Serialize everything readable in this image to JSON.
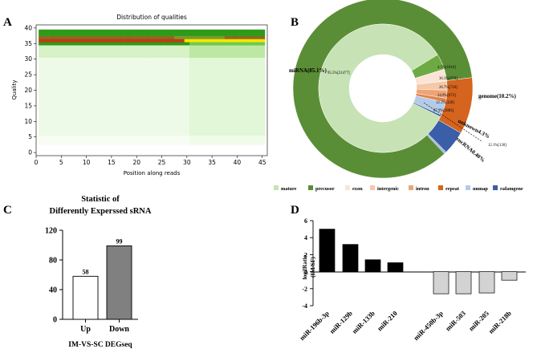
{
  "figure": {
    "panels": {
      "a": {
        "letter": "A"
      },
      "b": {
        "letter": "B"
      },
      "c": {
        "letter": "C"
      },
      "d": {
        "letter": "D"
      }
    }
  },
  "chart_data": [
    {
      "id": "A",
      "type": "heatmap",
      "title": "Distribution of qualities",
      "xlabel": "Position along reads",
      "ylabel": "Quality",
      "xlim": [
        0,
        46
      ],
      "ylim": [
        -1,
        41
      ],
      "xticks": [
        0,
        5,
        10,
        15,
        20,
        25,
        30,
        35,
        40,
        45
      ],
      "yticks": [
        0,
        5,
        10,
        15,
        20,
        25,
        30,
        35,
        40
      ],
      "colors": {
        "high": "#2e9a1a",
        "mid": "#bde8a4",
        "low": "#eefae8",
        "line": "#c43a12",
        "upper": "#f5e600"
      }
    },
    {
      "id": "B",
      "type": "pie",
      "subtype": "nested-donut",
      "outer": [
        {
          "label": "miRNA(85.1%)",
          "value": 85.1,
          "color": "#5a8e36"
        },
        {
          "label": "genome(10.2%)",
          "value": 10.2,
          "color": "#d4641e"
        },
        {
          "label": "unknown4.3%",
          "value": 4.3,
          "color": "#3a5ea8"
        },
        {
          "label": "sncRNA0.40%",
          "value": 0.4,
          "color": "#9fbbe0"
        }
      ],
      "inner": [
        {
          "label": "95.5%[21477]",
          "value": 95.5,
          "color": "#c7e2b4"
        },
        {
          "label": "4.5%[1016]",
          "value": 4.5,
          "color": "#6eaa44"
        },
        {
          "label": "36.3%[979]",
          "value": 3.4,
          "color": "#fbe4d6"
        },
        {
          "label": "26.7%[720]",
          "value": 2.6,
          "color": "#f5c8a6"
        },
        {
          "label": "24.9%[673]",
          "value": 2.3,
          "color": "#eea476"
        },
        {
          "label": "12.1%[328]",
          "value": 1.2,
          "color": "#e0844a"
        },
        {
          "label": "87.9%[2883]",
          "value": 3.8,
          "color": "#b4cbe8"
        },
        {
          "label": "12.1%[130]",
          "value": 0.5,
          "color": "#2b4f94"
        }
      ],
      "legend": [
        {
          "label": "mature",
          "color": "#c7e2b4"
        },
        {
          "label": "precusor",
          "color": "#5a8e36"
        },
        {
          "label": "exon",
          "color": "#fbe4d6"
        },
        {
          "label": "intergenic",
          "color": "#f5c8a6"
        },
        {
          "label": "intron",
          "color": "#eea476"
        },
        {
          "label": "repeat",
          "color": "#d4641e"
        },
        {
          "label": "unmap",
          "color": "#b4cbe8"
        },
        {
          "label": "rafamgene",
          "color": "#3a5ea8"
        }
      ]
    },
    {
      "id": "C",
      "type": "bar",
      "title_line1": "Statistic of",
      "title_line2": "Differently Experssed sRNA",
      "categories": [
        "Up",
        "Down"
      ],
      "values": [
        58,
        99
      ],
      "value_labels": [
        "58",
        "99"
      ],
      "xlabel": "IM-VS-SC DEGseq",
      "ylabel": "",
      "ylim": [
        0,
        120
      ],
      "yticks": [
        "0",
        "40",
        "80",
        "120"
      ],
      "colors": [
        "#ffffff",
        "#808080"
      ]
    },
    {
      "id": "D",
      "type": "bar",
      "categories": [
        "miR-196b-3p",
        "miR-129b",
        "miR-133b",
        "miR-210",
        "miR-450b-3p",
        "miR-503",
        "miR-205",
        "miR-218b"
      ],
      "values": [
        5.0,
        3.2,
        1.4,
        1.05,
        -2.6,
        -2.6,
        -2.5,
        -1.0
      ],
      "ylabel_line1": "log2Ratio",
      "ylabel_line2": "(IM/SF)",
      "ylim": [
        -4,
        6
      ],
      "yticks": [
        "-4",
        "-2",
        "0",
        "2",
        "4",
        "6"
      ],
      "colors": {
        "up": "#000000",
        "down": "#d3d3d3"
      }
    }
  ]
}
